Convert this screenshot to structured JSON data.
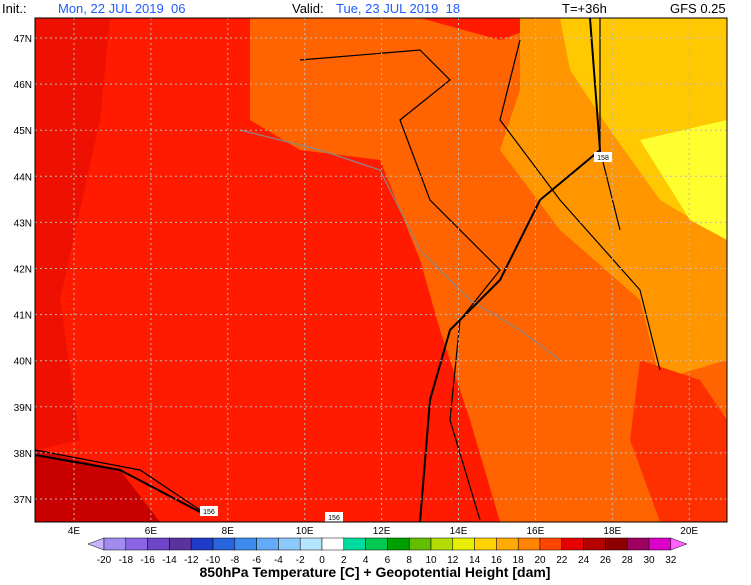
{
  "header": {
    "init_label": "Init.:",
    "init": "Mon, 22 JUL 2019  06",
    "valid_label": "Valid:",
    "valid": "Tue, 23 JUL 2019  18",
    "lead": "T=+36h",
    "model": "GFS 0.25"
  },
  "latitudes": [
    "47N",
    "46N",
    "45N",
    "44N",
    "43N",
    "42N",
    "41N",
    "40N",
    "39N",
    "38N",
    "37N"
  ],
  "longitudes": [
    "4E",
    "6E",
    "8E",
    "10E",
    "12E",
    "14E",
    "16E",
    "18E",
    "20E"
  ],
  "contour_labels": [
    "158",
    "156",
    "156"
  ],
  "colorbar": {
    "labels": [
      -20,
      -18,
      -16,
      -14,
      -12,
      -10,
      -8,
      -6,
      -4,
      -2,
      0,
      2,
      4,
      6,
      8,
      10,
      12,
      14,
      16,
      18,
      20,
      22,
      24,
      26,
      28,
      30,
      32
    ],
    "colors": [
      "#c8b4ff",
      "#a08cf0",
      "#8c64e6",
      "#6e46c8",
      "#5a32a0",
      "#1e3cc8",
      "#2864dc",
      "#3c8cf0",
      "#64aaf5",
      "#8cc8fa",
      "#b4e6ff",
      "#ffffff",
      "#00dca0",
      "#00c850",
      "#00a000",
      "#64be00",
      "#b4dc00",
      "#e6f000",
      "#ffd200",
      "#ffaa00",
      "#ff8200",
      "#ff4600",
      "#e60000",
      "#b40000",
      "#8c0000",
      "#a00064",
      "#dc00c8",
      "#ff64ff"
    ],
    "title": "850hPa Temperature [C] + Geopotential Height [dam]"
  }
}
